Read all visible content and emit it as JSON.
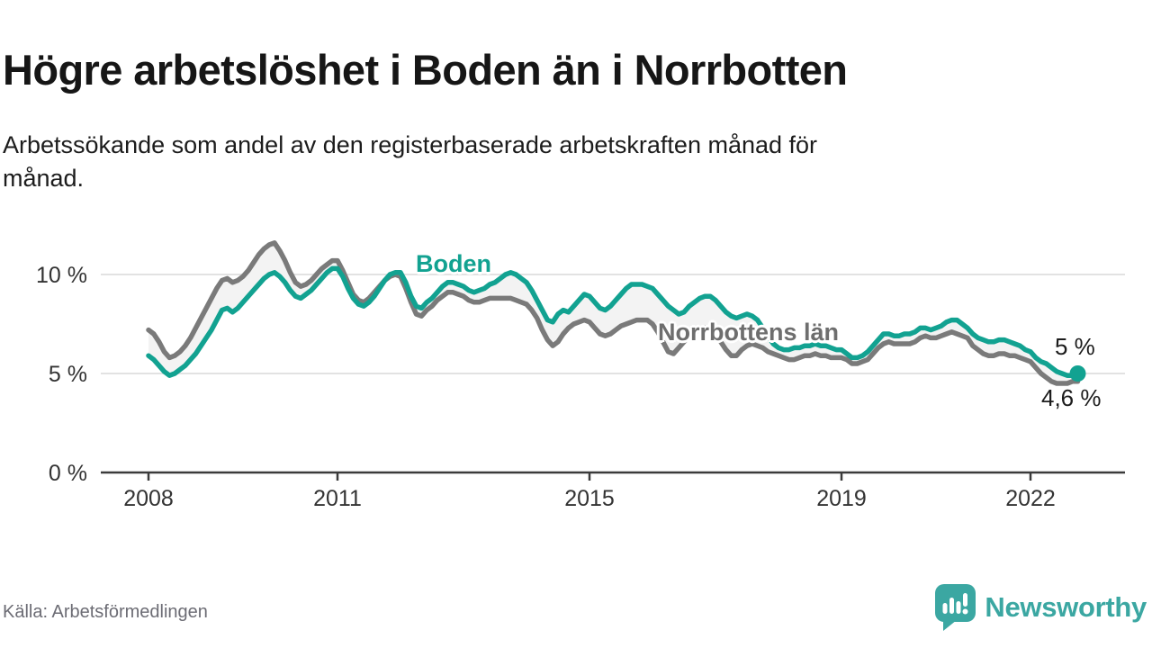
{
  "title": "Högre arbetslöshet i Boden än i Norrbotten",
  "subtitle": "Arbetssökande som andel av den registerbaserade arbetskraften månad för\nmånad.",
  "source": "Källa: Arbetsförmedlingen",
  "branding": {
    "name": "Newsworthy",
    "color": "#3BA7A2"
  },
  "chart_data": {
    "type": "line",
    "x_start": "2008-01",
    "x_end": "2022-10",
    "x_step_months": 1,
    "grid": "horizontal",
    "ylim": [
      0,
      12.5
    ],
    "y_ticks": [
      {
        "label": "0 %",
        "value": 0
      },
      {
        "label": "5 %",
        "value": 5
      },
      {
        "label": "10 %",
        "value": 10
      }
    ],
    "x_ticks": [
      {
        "label": "2008",
        "year": 2008
      },
      {
        "label": "2011",
        "year": 2011
      },
      {
        "label": "2015",
        "year": 2015
      },
      {
        "label": "2019",
        "year": 2019
      },
      {
        "label": "2022",
        "year": 2022
      }
    ],
    "fill_between_color": "#f3f3f3",
    "series": [
      {
        "name": "Boden",
        "color": "#12A291",
        "label_color": "#12A291",
        "end_label": "5 %",
        "end_value": 5.0,
        "values": [
          5.9,
          5.7,
          5.4,
          5.1,
          4.9,
          5.0,
          5.2,
          5.4,
          5.7,
          6.0,
          6.4,
          6.8,
          7.2,
          7.7,
          8.2,
          8.3,
          8.1,
          8.3,
          8.6,
          8.9,
          9.2,
          9.5,
          9.8,
          10.0,
          10.1,
          9.9,
          9.6,
          9.2,
          8.9,
          8.8,
          9.0,
          9.2,
          9.5,
          9.8,
          10.1,
          10.3,
          10.3,
          9.9,
          9.3,
          8.8,
          8.5,
          8.4,
          8.6,
          8.9,
          9.3,
          9.7,
          10.0,
          10.1,
          10.1,
          9.6,
          8.9,
          8.4,
          8.3,
          8.6,
          8.8,
          9.1,
          9.4,
          9.6,
          9.6,
          9.5,
          9.4,
          9.2,
          9.1,
          9.2,
          9.3,
          9.5,
          9.6,
          9.8,
          10.0,
          10.1,
          10.0,
          9.8,
          9.6,
          9.2,
          8.7,
          8.2,
          7.7,
          7.6,
          8.0,
          8.2,
          8.1,
          8.4,
          8.7,
          9.0,
          8.9,
          8.6,
          8.3,
          8.2,
          8.4,
          8.7,
          9.0,
          9.3,
          9.5,
          9.5,
          9.5,
          9.4,
          9.3,
          9.0,
          8.7,
          8.4,
          8.2,
          8.0,
          8.1,
          8.4,
          8.6,
          8.8,
          8.9,
          8.9,
          8.7,
          8.4,
          8.1,
          7.9,
          7.8,
          7.9,
          8.0,
          7.9,
          7.7,
          7.3,
          6.9,
          6.5,
          6.3,
          6.2,
          6.2,
          6.3,
          6.3,
          6.4,
          6.4,
          6.5,
          6.4,
          6.4,
          6.3,
          6.2,
          6.2,
          6.0,
          5.8,
          5.8,
          5.9,
          6.1,
          6.4,
          6.7,
          7.0,
          7.0,
          6.9,
          6.9,
          7.0,
          7.0,
          7.1,
          7.3,
          7.3,
          7.2,
          7.3,
          7.4,
          7.6,
          7.7,
          7.7,
          7.5,
          7.3,
          7.0,
          6.8,
          6.7,
          6.6,
          6.6,
          6.7,
          6.7,
          6.6,
          6.5,
          6.4,
          6.2,
          6.1,
          5.8,
          5.6,
          5.5,
          5.3,
          5.1,
          5.0,
          4.9,
          4.9,
          5.0
        ]
      },
      {
        "name": "Norrbottens län",
        "color": "#7A7A7A",
        "label_color": "#6e6e6e",
        "end_label": "4,6 %",
        "end_value": 4.6,
        "values": [
          7.2,
          7.0,
          6.6,
          6.1,
          5.8,
          5.9,
          6.1,
          6.4,
          6.8,
          7.3,
          7.8,
          8.3,
          8.8,
          9.3,
          9.7,
          9.8,
          9.6,
          9.7,
          9.9,
          10.2,
          10.6,
          11.0,
          11.3,
          11.5,
          11.6,
          11.2,
          10.7,
          10.1,
          9.6,
          9.4,
          9.5,
          9.7,
          10.0,
          10.3,
          10.5,
          10.7,
          10.7,
          10.2,
          9.6,
          9.0,
          8.7,
          8.6,
          8.8,
          9.1,
          9.4,
          9.7,
          9.9,
          10.0,
          9.9,
          9.3,
          8.6,
          8.0,
          7.9,
          8.2,
          8.4,
          8.7,
          8.9,
          9.1,
          9.1,
          9.0,
          8.9,
          8.7,
          8.6,
          8.6,
          8.7,
          8.8,
          8.8,
          8.8,
          8.8,
          8.8,
          8.7,
          8.6,
          8.5,
          8.2,
          7.8,
          7.2,
          6.7,
          6.4,
          6.6,
          7.0,
          7.3,
          7.5,
          7.6,
          7.7,
          7.6,
          7.3,
          7.0,
          6.9,
          7.0,
          7.2,
          7.4,
          7.5,
          7.6,
          7.7,
          7.7,
          7.7,
          7.5,
          7.1,
          6.6,
          6.1,
          6.0,
          6.3,
          6.6,
          6.9,
          7.1,
          7.2,
          7.3,
          7.2,
          7.0,
          6.6,
          6.2,
          5.9,
          5.9,
          6.2,
          6.4,
          6.5,
          6.4,
          6.3,
          6.1,
          6.0,
          5.9,
          5.8,
          5.7,
          5.7,
          5.8,
          5.9,
          5.9,
          6.0,
          5.9,
          5.9,
          5.8,
          5.8,
          5.8,
          5.7,
          5.5,
          5.5,
          5.6,
          5.7,
          6.0,
          6.3,
          6.5,
          6.6,
          6.5,
          6.5,
          6.5,
          6.5,
          6.6,
          6.8,
          6.9,
          6.8,
          6.8,
          6.9,
          7.0,
          7.1,
          7.0,
          6.9,
          6.8,
          6.4,
          6.2,
          6.0,
          5.9,
          5.9,
          6.0,
          6.0,
          5.9,
          5.9,
          5.8,
          5.7,
          5.6,
          5.3,
          5.0,
          4.8,
          4.6,
          4.5,
          4.5,
          4.5,
          4.6,
          4.6
        ]
      }
    ]
  }
}
